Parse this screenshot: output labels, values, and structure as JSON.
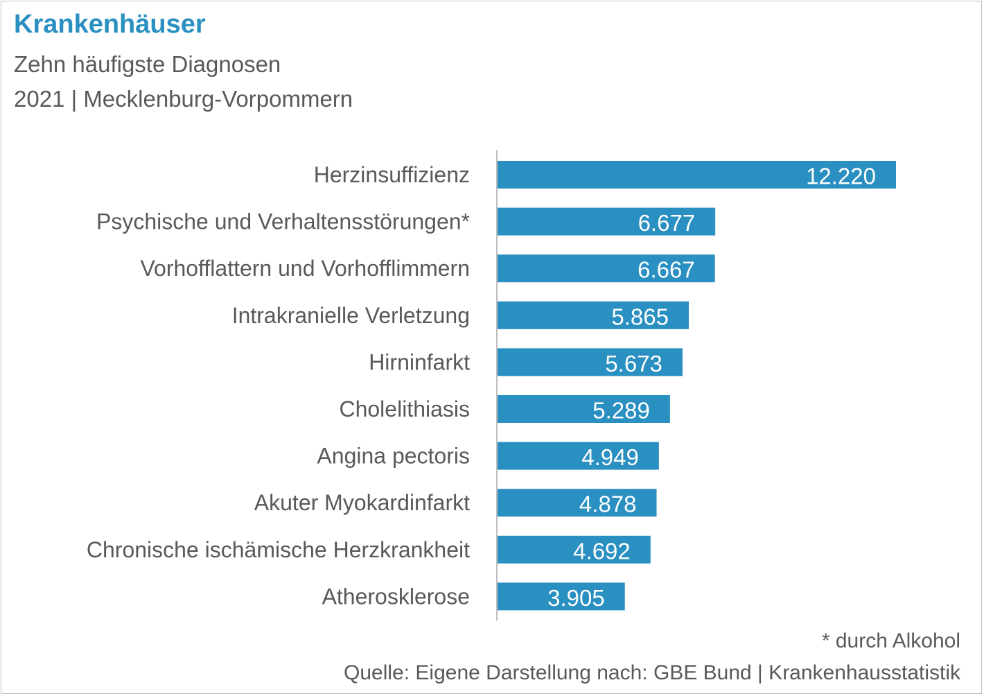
{
  "header": {
    "title": "Krankenhäuser",
    "subtitle_line1": "Zehn häufigste Diagnosen",
    "subtitle_line2": "2021 | Mecklenburg-Vorpommern"
  },
  "footer": {
    "note": "* durch Alkohol",
    "source": "Quelle: Eigene Darstellung nach: GBE Bund | Krankenhausstatistik"
  },
  "colors": {
    "title": "#2a8fc1",
    "bar": "#2a8fc1",
    "bar_label": "#ffffff",
    "category_label": "#595959",
    "axis": "#bfbfbf"
  },
  "chart_data": {
    "type": "bar",
    "orientation": "horizontal",
    "categories": [
      "Herzinsuffizienz",
      "Psychische und Verhaltensstörungen*",
      "Vorhofflattern und Vorhofflimmern",
      "Intrakranielle Verletzung",
      "Hirninfarkt",
      "Cholelithiasis",
      "Angina pectoris",
      "Akuter Myokardinfarkt",
      "Chronische ischämische Herzkrankheit",
      "Atherosklerose"
    ],
    "values": [
      12220,
      6677,
      6667,
      5865,
      5673,
      5289,
      4949,
      4878,
      4692,
      3905
    ],
    "value_labels": [
      "12.220",
      "6.677",
      "6.667",
      "5.865",
      "5.673",
      "5.289",
      "4.949",
      "4.878",
      "4.692",
      "3.905"
    ],
    "xlim": [
      0,
      12220
    ],
    "grid": false,
    "legend": "none"
  }
}
